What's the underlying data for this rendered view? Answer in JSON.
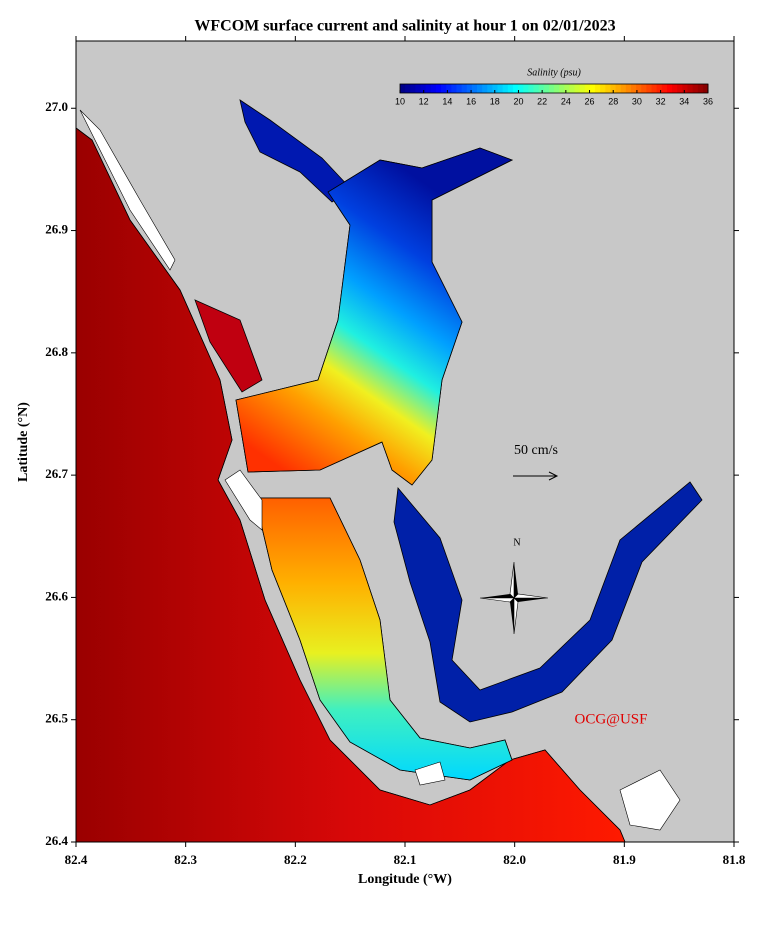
{
  "chart_data": {
    "type": "map",
    "title": "WFCOM surface current and salinity at hour 1 on 02/01/2023",
    "x_label": "Longitude (°W)",
    "y_label": "Latitude (°N)",
    "xlim": [
      82.4,
      81.8
    ],
    "ylim": [
      26.4,
      27.055
    ],
    "xticks": [
      82.4,
      82.3,
      82.2,
      82.1,
      {
        "value": 82,
        "label": "82.0"
      },
      81.9,
      81.8
    ],
    "yticks": [
      26.4,
      26.5,
      26.6,
      26.7,
      26.8,
      26.9,
      {
        "value": 27,
        "label": "27.0"
      }
    ],
    "colorbar": {
      "title": "Salinity (psu)",
      "colormap": "jet",
      "lim": [
        10,
        36
      ],
      "ticks": [
        10,
        12,
        14,
        16,
        18,
        20,
        22,
        24,
        26,
        28,
        30,
        32,
        34,
        36
      ]
    },
    "scale_label": "50 cm/s",
    "compass_label": "N",
    "credit": "OCG@USF"
  }
}
